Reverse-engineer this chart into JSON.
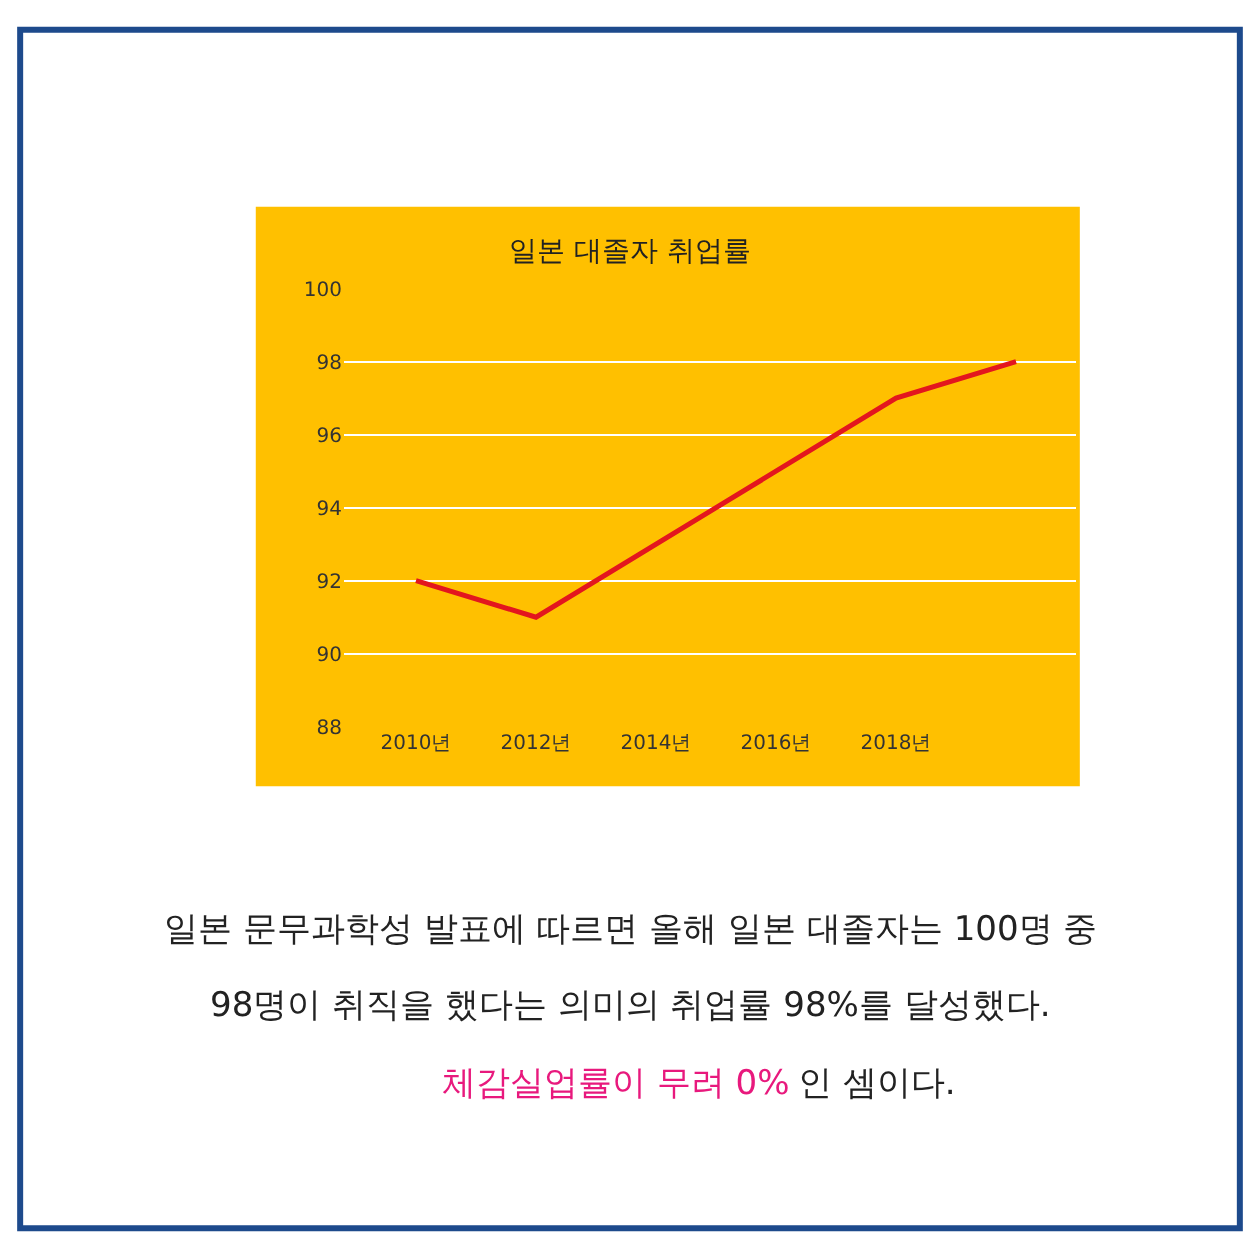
{
  "chart_data": {
    "type": "line",
    "title": "일본 대졸자 취업률",
    "x": [
      2010,
      2012,
      2018,
      2020
    ],
    "series": [
      {
        "color": "#e3161e",
        "values": [
          92,
          91,
          97,
          98
        ]
      }
    ],
    "xlim": [
      2008.8,
      2021
    ],
    "xticks": [
      {
        "value": 2010,
        "label": "2010년"
      },
      {
        "value": 2012,
        "label": "2012년"
      },
      {
        "value": 2014,
        "label": "2014년"
      },
      {
        "value": 2016,
        "label": "2016년"
      },
      {
        "value": 2018,
        "label": "2018년"
      }
    ],
    "ylim": [
      88,
      100
    ],
    "yticks": [
      88,
      90,
      92,
      94,
      96,
      98,
      100
    ],
    "grid": "y",
    "legend": false,
    "marker": "none",
    "line_style": "solid",
    "annotations": [
      "일본 문무과학성 발표에 따르면 올해 일본 대졸자는 100명 중",
      "98명이 취직을 했다는 의미의 취업률 98%를 달성했다.",
      "체감실업률이 무려 0%",
      "인 셈이다."
    ]
  }
}
